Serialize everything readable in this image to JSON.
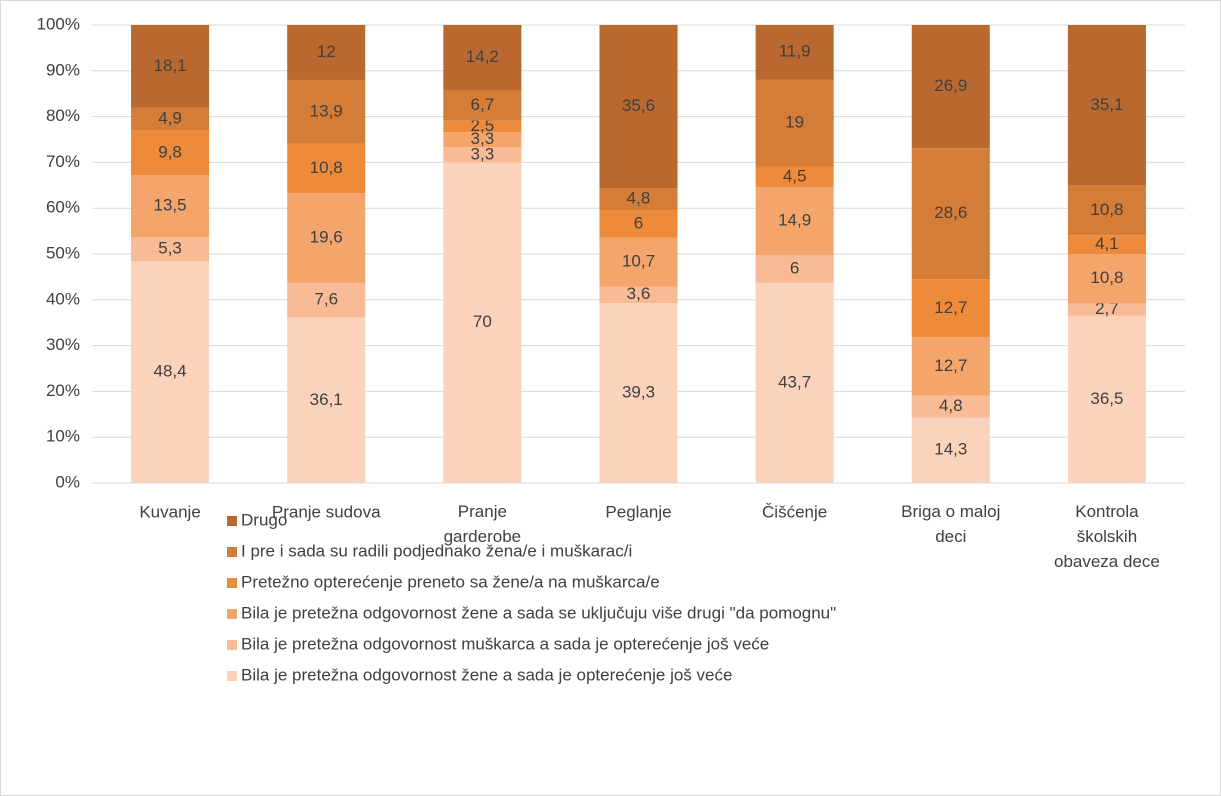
{
  "chart_data": {
    "type": "stacked_bar",
    "categories": [
      "Kuvanje",
      "Pranje sudova",
      "Pranje garderobe",
      "Peglanje",
      "Čišćenje",
      "Briga o maloj deci",
      "Kontrola školskih obaveza dece"
    ],
    "series": [
      {
        "name": "Bila je pretežna odgovornost žene a sada je opterećenje još veće",
        "color": "#fbd3bd",
        "values": [
          48.4,
          36.1,
          70,
          39.3,
          43.7,
          14.3,
          36.5
        ],
        "value_labels": [
          "48,4",
          "36,1",
          "70",
          "39,3",
          "43,7",
          "14,3",
          "36,5"
        ]
      },
      {
        "name": "Bila je pretežna odgovornost muškarca a sada je opterećenje još veće",
        "color": "#f8bb95",
        "values": [
          5.3,
          7.6,
          3.3,
          3.6,
          6,
          4.8,
          2.7
        ],
        "value_labels": [
          "5,3",
          "7,6",
          "3,3",
          "3,6",
          "6",
          "4,8",
          "2,7"
        ]
      },
      {
        "name": "Bila je pretežna odgovornost žene a sada se uključuju više drugi \"da pomognu\"",
        "color": "#f4a56b",
        "values": [
          13.5,
          19.6,
          3.3,
          10.7,
          14.9,
          12.7,
          10.8
        ],
        "value_labels": [
          "13,5",
          "19,6",
          "3,3",
          "10,7",
          "14,9",
          "12,7",
          "10,8"
        ]
      },
      {
        "name": "Pretežno opterećenje preneto sa žene/a na muškarca/e",
        "color": "#ed8b3b",
        "values": [
          9.8,
          10.8,
          2.5,
          6,
          4.5,
          12.7,
          4.1
        ],
        "value_labels": [
          "9,8",
          "10,8",
          "2,5",
          "6",
          "4,5",
          "12,7",
          "4,1"
        ]
      },
      {
        "name": "I pre i sada su radili podjednako žena/e i muškarac/i",
        "color": "#d57c36",
        "values": [
          4.9,
          13.9,
          6.7,
          4.8,
          19,
          28.6,
          10.8
        ],
        "value_labels": [
          "4,9",
          "13,9",
          "6,7",
          "4,8",
          "19",
          "28,6",
          "10,8"
        ]
      },
      {
        "name": "Drugo",
        "color": "#b9692f",
        "values": [
          18.1,
          12,
          14.2,
          35.6,
          11.9,
          26.9,
          35.1
        ],
        "value_labels": [
          "18,1",
          "12",
          "14,2",
          "35,6",
          "11,9",
          "26,9",
          "35,1"
        ]
      }
    ],
    "ylim": [
      0,
      100
    ],
    "yticks": [
      {
        "value": 0,
        "label": "0%"
      },
      {
        "value": 10,
        "label": "10%"
      },
      {
        "value": 20,
        "label": "20%"
      },
      {
        "value": 30,
        "label": "30%"
      },
      {
        "value": 40,
        "label": "40%"
      },
      {
        "value": 50,
        "label": "50%"
      },
      {
        "value": 60,
        "label": "60%"
      },
      {
        "value": 70,
        "label": "70%"
      },
      {
        "value": 80,
        "label": "80%"
      },
      {
        "value": 90,
        "label": "90%"
      },
      {
        "value": 100,
        "label": "100%"
      }
    ],
    "grid": true,
    "legend": "bottom"
  }
}
